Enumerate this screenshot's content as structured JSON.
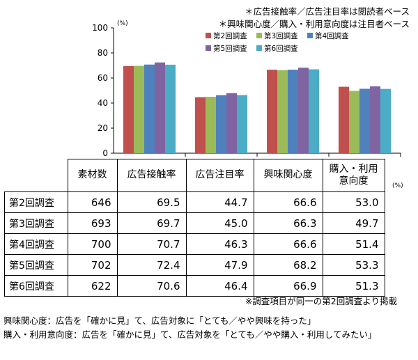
{
  "notes_top": [
    "＊広告接触率／広告注目率は閲読者ベース",
    "＊興味関心度／購入・利用意向度は注目者ベース"
  ],
  "chart_data": {
    "type": "bar",
    "categories": [
      "広告接触率",
      "広告注目率",
      "興味関心度",
      "購入・利用意向度"
    ],
    "series": [
      {
        "name": "第2回調査",
        "values": [
          69.5,
          44.7,
          66.6,
          53.0
        ],
        "color": "#c0504d"
      },
      {
        "name": "第3回調査",
        "values": [
          69.7,
          45.0,
          66.3,
          49.7
        ],
        "color": "#9bbb59"
      },
      {
        "name": "第4回調査",
        "values": [
          70.7,
          46.3,
          66.6,
          51.4
        ],
        "color": "#4f81bd"
      },
      {
        "name": "第5回調査",
        "values": [
          72.4,
          47.9,
          68.2,
          53.3
        ],
        "color": "#8064a2"
      },
      {
        "name": "第6回調査",
        "values": [
          70.6,
          46.4,
          66.9,
          51.3
        ],
        "color": "#4bacc6"
      }
    ],
    "ylim": [
      0,
      100
    ],
    "yticks": [
      "0",
      "20",
      "40",
      "60",
      "80",
      "100"
    ],
    "yunit": "(%)",
    "legend_position": "top-right",
    "grid": false
  },
  "table": {
    "headers": [
      "素材数",
      "広告接触率",
      "広告注目率",
      "興味関心度",
      "購入・利用\n意向度"
    ],
    "rows": [
      {
        "label": "第2回調査",
        "cells": [
          "646",
          "69.5",
          "44.7",
          "66.6",
          "53.0"
        ]
      },
      {
        "label": "第3回調査",
        "cells": [
          "693",
          "69.7",
          "45.0",
          "66.3",
          "49.7"
        ]
      },
      {
        "label": "第4回調査",
        "cells": [
          "700",
          "70.7",
          "46.3",
          "66.6",
          "51.4"
        ]
      },
      {
        "label": "第5回調査",
        "cells": [
          "702",
          "72.4",
          "47.9",
          "68.2",
          "53.3"
        ]
      },
      {
        "label": "第6回調査",
        "cells": [
          "622",
          "70.6",
          "46.4",
          "66.9",
          "51.3"
        ]
      }
    ],
    "unit": "(%)"
  },
  "footnote": "※調査項目が同一の第2回調査より掲載",
  "definitions": [
    "興味関心度：広告を「確かに見」て、広告対象に「とても／やや興味を持った」",
    "購入・利用意向度：広告を「確かに見」て、広告対象を「とても／やや購入・利用してみたい」"
  ]
}
